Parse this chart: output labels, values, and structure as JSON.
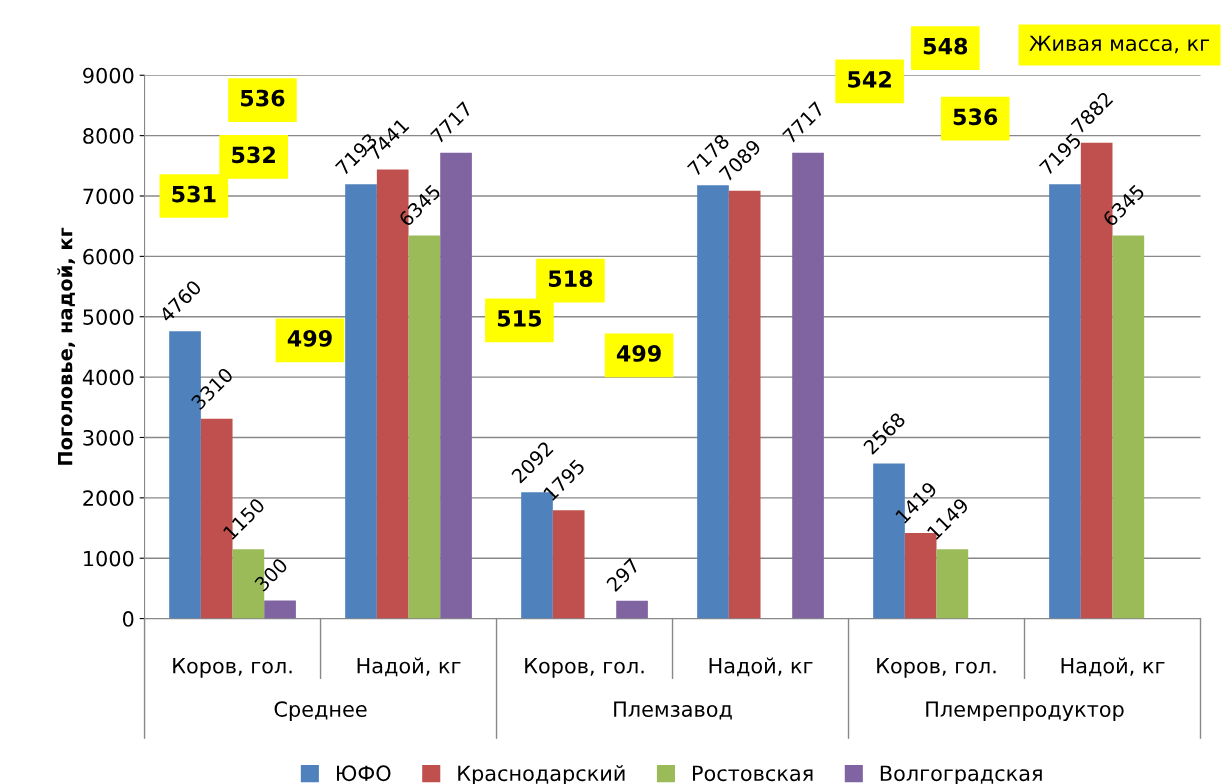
{
  "chart_data": {
    "type": "bar",
    "ylabel": "Поголовье, надой, кг",
    "categories": [
      "Коров, гол.",
      "Надой, кг",
      "Коров, гол.",
      "Надой, кг",
      "Коров, гол.",
      "Надой, кг"
    ],
    "series": [
      {
        "name": "ЮФО",
        "color": "#4f81bd",
        "values": [
          4760,
          7193,
          2092,
          7178,
          2568,
          7195
        ]
      },
      {
        "name": "Краснодарский",
        "color": "#c0504d",
        "values": [
          3310,
          7441,
          1795,
          7089,
          1419,
          7882
        ]
      },
      {
        "name": "Ростовская",
        "color": "#9bbb59",
        "values": [
          1150,
          6345,
          null,
          null,
          1149,
          6345
        ]
      },
      {
        "name": "Волгоградская",
        "color": "#8064a2",
        "values": [
          300,
          7717,
          297,
          7717,
          null,
          null
        ]
      }
    ],
    "ylim": [
      0,
      9000
    ],
    "yticks": [
      0,
      1000,
      2000,
      3000,
      4000,
      5000,
      6000,
      7000,
      8000,
      9000
    ],
    "grid": "y",
    "legend": "bottom",
    "data_labels": true,
    "annotations": [
      "531",
      "532",
      "536",
      "499",
      "515",
      "518",
      "499",
      "542",
      "548",
      "536",
      "Живая масса, кг",
      "Среднее",
      "Племзавод",
      "Племрепродуктор"
    ]
  }
}
